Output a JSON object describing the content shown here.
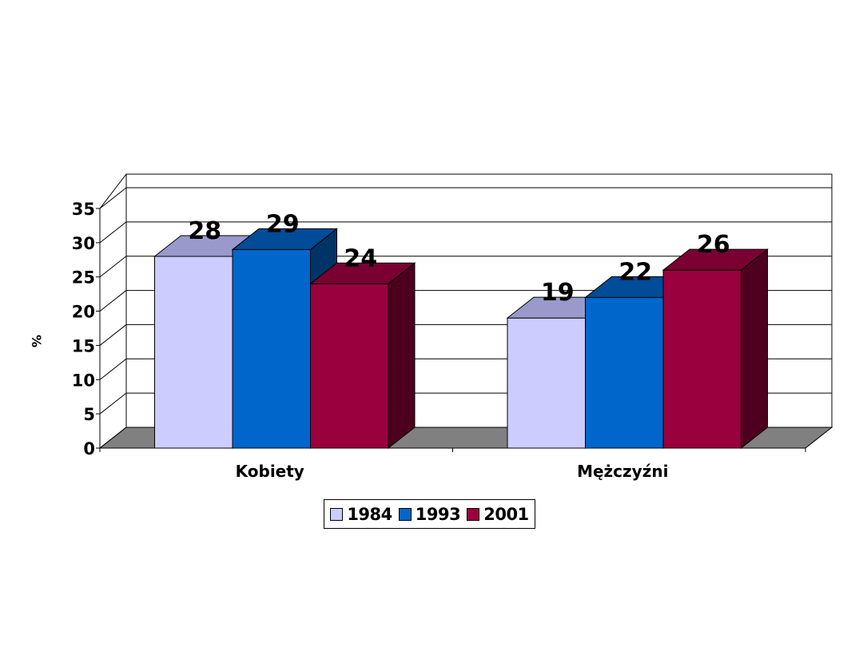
{
  "chart_data": {
    "type": "bar",
    "categories": [
      "Kobiety",
      "Mężczyźni"
    ],
    "series": [
      {
        "name": "1984",
        "values": [
          28,
          19
        ],
        "color": "#ccccff",
        "top_color": "#9999cc",
        "side_color": "#9999cc"
      },
      {
        "name": "1993",
        "values": [
          29,
          22
        ],
        "color": "#0066cc",
        "top_color": "#004c99",
        "side_color": "#003366"
      },
      {
        "name": "2001",
        "values": [
          24,
          26
        ],
        "color": "#99003d",
        "top_color": "#7a0031",
        "side_color": "#4d001e"
      }
    ],
    "ylim": [
      0,
      35
    ],
    "yticks": [
      "0",
      "5",
      "10",
      "15",
      "20",
      "25",
      "30",
      "35"
    ],
    "ylabel": "%",
    "data_labels": [
      [
        "28",
        "19"
      ],
      [
        "29",
        "22"
      ],
      [
        "24",
        "26"
      ]
    ],
    "legend": "bottom",
    "grid": true,
    "floor_color": "#808080"
  }
}
